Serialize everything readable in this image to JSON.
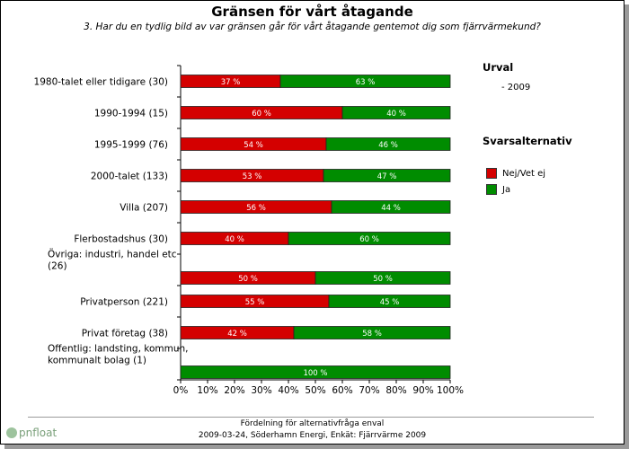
{
  "header": {
    "title": "Gränsen för vårt åtagande",
    "subtitle": "3. Har du en tydlig bild av var gränsen går för vårt åtagande gentemot dig som fjärrvärmekund?"
  },
  "legend": {
    "urval_title": "Urval",
    "urval_item": "- 2009",
    "answers_title": "Svarsalternativ",
    "items": [
      {
        "label": "Nej/Vet ej",
        "color": "#d40000"
      },
      {
        "label": "Ja",
        "color": "#008c00"
      }
    ]
  },
  "footer": {
    "line1": "Fördelning för alternativfråga enval",
    "line2": "2009-03-24, Söderhamn Energi, Enkät: Fjärrvärme 2009",
    "logo": "pnfloat"
  },
  "chart_data": {
    "type": "bar",
    "orientation": "horizontal",
    "stacked": true,
    "percent_scale": true,
    "categories": [
      [
        "1980-talet eller tidigare (30)"
      ],
      [
        "1990-1994 (15)"
      ],
      [
        "1995-1999 (76)"
      ],
      [
        "2000-talet (133)"
      ],
      [
        "Villa (207)"
      ],
      [
        "Flerbostadshus (30)"
      ],
      [
        "Övriga: industri, handel etc",
        "(26)"
      ],
      [
        "Privatperson (221)"
      ],
      [
        "Privat företag (38)"
      ],
      [
        "Offentlig: landsting, kommun,",
        "kommunalt bolag (1)"
      ]
    ],
    "series": [
      {
        "name": "Nej/Vet ej",
        "color": "#d40000",
        "values": [
          37,
          60,
          54,
          53,
          56,
          40,
          50,
          55,
          42,
          0
        ]
      },
      {
        "name": "Ja",
        "color": "#008c00",
        "values": [
          63,
          40,
          46,
          47,
          44,
          60,
          50,
          45,
          58,
          100
        ]
      }
    ],
    "value_labels": {
      "Nej/Vet ej": [
        "37 %",
        "60 %",
        "54 %",
        "53 %",
        "56 %",
        "40 %",
        "50 %",
        "55 %",
        "42 %",
        ""
      ],
      "Ja": [
        "63 %",
        "40 %",
        "46 %",
        "47 %",
        "44 %",
        "60 %",
        "50 %",
        "45 %",
        "58 %",
        "100 %"
      ]
    },
    "x_ticks": [
      "0%",
      "10%",
      "20%",
      "30%",
      "40%",
      "50%",
      "60%",
      "70%",
      "80%",
      "90%",
      "100%"
    ],
    "xlim": [
      0,
      100
    ]
  }
}
